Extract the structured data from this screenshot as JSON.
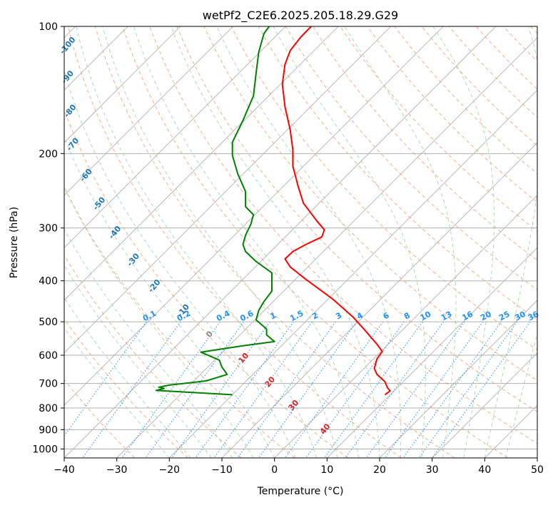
{
  "chart_data": {
    "type": "line",
    "title": "wetPf2_C2E6.2025.205.18.29.G29",
    "xlabel": "Temperature (°C)",
    "ylabel": "Pressure (hPa)",
    "xlim": [
      -40,
      50
    ],
    "ylim": [
      1050,
      100
    ],
    "y_scale": "log",
    "grid": true,
    "x_ticks": [
      -40,
      -30,
      -20,
      -10,
      0,
      10,
      20,
      30,
      40,
      50
    ],
    "y_ticks": [
      100,
      200,
      300,
      400,
      500,
      600,
      700,
      800,
      900,
      1000
    ],
    "series": [
      {
        "color": "#ff0000",
        "points": [
          [
            21.0,
            744
          ],
          [
            22.0,
            729
          ],
          [
            21.5,
            716
          ],
          [
            21.0,
            693
          ],
          [
            19.5,
            666
          ],
          [
            19.0,
            645
          ],
          [
            19.5,
            612
          ],
          [
            20.5,
            588
          ],
          [
            19.5,
            565
          ],
          [
            18.5,
            547
          ],
          [
            17.0,
            520
          ],
          [
            15.0,
            488
          ],
          [
            11.0,
            441
          ],
          [
            6.0,
            397
          ],
          [
            3.0,
            371
          ],
          [
            2.0,
            355
          ],
          [
            3.5,
            341
          ],
          [
            6.0,
            328
          ],
          [
            9.0,
            315
          ],
          [
            9.5,
            303
          ],
          [
            8.0,
            288
          ],
          [
            5.5,
            262
          ],
          [
            4.5,
            239
          ],
          [
            3.5,
            214
          ],
          [
            3.5,
            196
          ],
          [
            3.0,
            176
          ],
          [
            2.0,
            155
          ],
          [
            1.5,
            137
          ],
          [
            2.0,
            123
          ],
          [
            3.0,
            114
          ],
          [
            5.0,
            106
          ],
          [
            7.0,
            100
          ]
        ]
      },
      {
        "color": "#008000",
        "points": [
          [
            -8.0,
            744
          ],
          [
            -22.5,
            727
          ],
          [
            -21.0,
            719
          ],
          [
            -22.0,
            714
          ],
          [
            -20.0,
            706
          ],
          [
            -13.0,
            690
          ],
          [
            -9.0,
            666
          ],
          [
            -10.0,
            640
          ],
          [
            -10.5,
            616
          ],
          [
            -14.0,
            590
          ],
          [
            -6.0,
            570
          ],
          [
            0.0,
            557
          ],
          [
            -1.5,
            537
          ],
          [
            -1.5,
            520
          ],
          [
            -3.5,
            495
          ],
          [
            -3.0,
            470
          ],
          [
            -2.0,
            448
          ],
          [
            -0.5,
            423
          ],
          [
            -0.5,
            401
          ],
          [
            -0.5,
            383
          ],
          [
            -3.5,
            360
          ],
          [
            -5.5,
            341
          ],
          [
            -6.0,
            328
          ],
          [
            -5.5,
            312
          ],
          [
            -4.5,
            294
          ],
          [
            -4.0,
            279
          ],
          [
            -5.5,
            267
          ],
          [
            -5.5,
            246
          ],
          [
            -7.0,
            223
          ],
          [
            -8.0,
            202
          ],
          [
            -8.0,
            188
          ],
          [
            -6.0,
            167
          ],
          [
            -4.0,
            146
          ],
          [
            -3.5,
            129
          ],
          [
            -3.0,
            115
          ],
          [
            -2.0,
            104
          ],
          [
            -1.0,
            100
          ]
        ]
      }
    ],
    "annotations": {
      "dry_adiabat_labels": [
        {
          "text": "-100",
          "x": -39.0,
          "y": 112,
          "color": "#1f77b4"
        },
        {
          "text": "-90",
          "x": -39.0,
          "y": 133,
          "color": "#1f77b4"
        },
        {
          "text": "-80",
          "x": -38.5,
          "y": 160,
          "color": "#1f77b4"
        },
        {
          "text": "-70",
          "x": -38.0,
          "y": 192,
          "color": "#1f77b4"
        },
        {
          "text": "-60",
          "x": -35.5,
          "y": 227,
          "color": "#1f77b4"
        },
        {
          "text": "-50",
          "x": -33.0,
          "y": 265,
          "color": "#1f77b4"
        },
        {
          "text": "-40",
          "x": -30.0,
          "y": 310,
          "color": "#1f77b4"
        },
        {
          "text": "-30",
          "x": -26.5,
          "y": 360,
          "color": "#1f77b4"
        },
        {
          "text": "-20",
          "x": -22.5,
          "y": 415,
          "color": "#1f77b4"
        },
        {
          "text": "-10",
          "x": -17.0,
          "y": 475,
          "color": "#1f77b4"
        },
        {
          "text": "0",
          "x": -12.0,
          "y": 540,
          "color": "#888888"
        },
        {
          "text": "10",
          "x": -5.5,
          "y": 615,
          "color": "#d62728"
        },
        {
          "text": "20",
          "x": -0.5,
          "y": 700,
          "color": "#d62728"
        },
        {
          "text": "30",
          "x": 4.0,
          "y": 795,
          "color": "#d62728"
        },
        {
          "text": "40",
          "x": 10.0,
          "y": 905,
          "color": "#d62728"
        }
      ],
      "mixing_ratio_labels": [
        "0.1",
        "0.2",
        "0.4",
        "0.6",
        "1",
        "1.5",
        "2",
        "3",
        "4",
        "6",
        "8",
        "10",
        "13",
        "16",
        "20",
        "25",
        "30",
        "36"
      ],
      "mixing_ratio_label_x": [
        -23.0,
        -16.5,
        -9.0,
        -4.5,
        0.5,
        5.0,
        8.5,
        13.0,
        17.0,
        22.0,
        26.0,
        29.5,
        33.5,
        37.5,
        41.0,
        44.5,
        47.5,
        50.0
      ],
      "mixing_ratio_color": "#1e90ff"
    }
  }
}
